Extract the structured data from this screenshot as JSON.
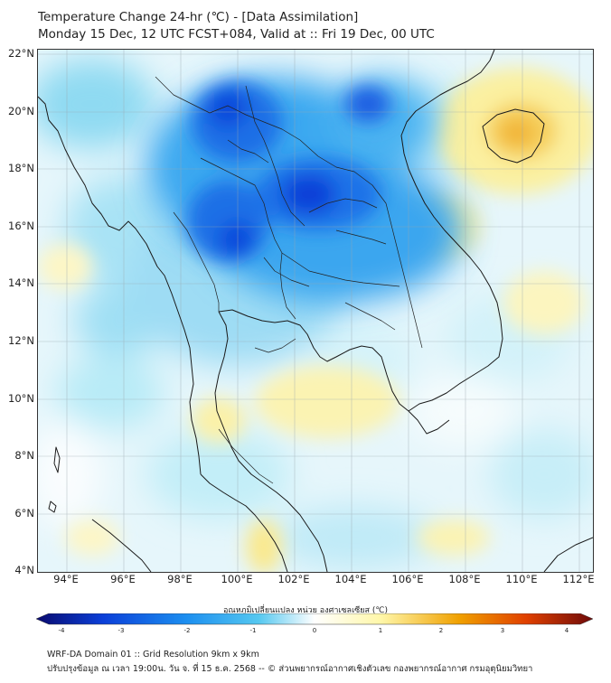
{
  "header": {
    "line1": "Temperature Change 24-hr (℃) - [Data Assimilation]",
    "line2": "Monday 15 Dec, 12 UTC FCST+084, Valid at :: Fri 19 Dec, 00 UTC"
  },
  "map": {
    "latitude_labels": [
      "22°N",
      "20°N",
      "18°N",
      "16°N",
      "14°N",
      "12°N",
      "10°N",
      "8°N",
      "6°N",
      "4°N"
    ],
    "longitude_labels": [
      "94°E",
      "96°E",
      "98°E",
      "100°E",
      "102°E",
      "104°E",
      "106°E",
      "108°E",
      "110°E",
      "112°E"
    ],
    "extent": {
      "lon_min": 93,
      "lon_max": 112.5,
      "lat_min": 4,
      "lat_max": 22.2
    }
  },
  "colorbar": {
    "title": "อุณหภูมิเปลี่ยนแปลง หน่วย องศาเซลเซียส (℃)",
    "ticks": [
      "-4",
      "-3",
      "-2",
      "-1",
      "0",
      "1",
      "2",
      "3",
      "4"
    ],
    "range": [
      -4,
      4
    ],
    "colors": {
      "cold_extreme": "#0a0a6e",
      "cold_strong": "#0b3fd8",
      "cold": "#1c8ff0",
      "cool": "#56c8f0",
      "neutral": "#ffffff",
      "warm": "#fff7a8",
      "hot": "#f0a000",
      "hot_strong": "#e04000",
      "hot_extreme": "#6e0a0a"
    }
  },
  "footer": {
    "line1": "WRF-DA Domain 01 :: Grid Resolution 9km x 9km",
    "line2": "ปรับปรุงข้อมูล ณ เวลา 19:00น. วัน จ. ที่ 15 ธ.ค. 2568 -- © ส่วนพยากรณ์อากาศเชิงตัวเลข กองพยากรณ์อากาศ กรมอุตุนิยมวิทยา"
  }
}
